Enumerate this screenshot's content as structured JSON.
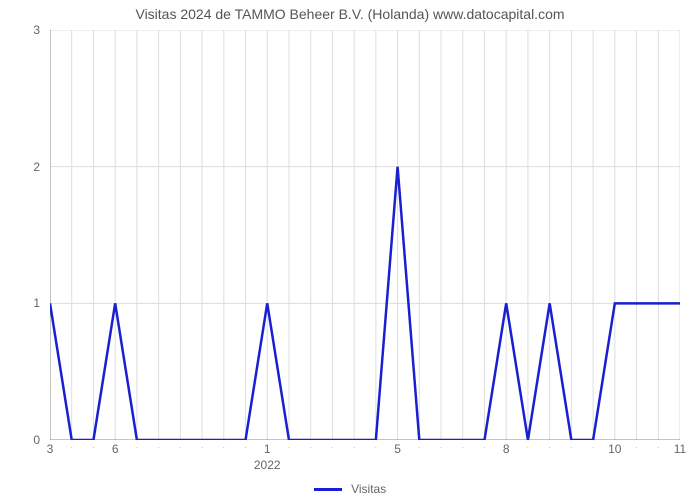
{
  "chart": {
    "type": "line",
    "title": "Visitas 2024 de TAMMO Beheer B.V. (Holanda) www.datocapital.com",
    "title_fontsize": 14,
    "title_color": "#555555",
    "background_color": "#ffffff",
    "grid_color": "#dddddd",
    "axis_color": "#888888",
    "line_color": "#1a1fd1",
    "line_width": 2.5,
    "label_color": "#666666",
    "label_fontsize": 12,
    "y_axis": {
      "min": 0,
      "max": 3,
      "ticks": [
        0,
        1,
        2,
        3
      ]
    },
    "x_axis": {
      "n_points": 30,
      "major_tick_labels": [
        {
          "pos": 0,
          "text": "3"
        },
        {
          "pos": 3,
          "text": "6"
        },
        {
          "pos": 10,
          "text": "1"
        },
        {
          "pos": 16,
          "text": "5"
        },
        {
          "pos": 21,
          "text": "8"
        },
        {
          "pos": 26,
          "text": "10"
        },
        {
          "pos": 29,
          "text": "11"
        }
      ],
      "sub_label": {
        "pos": 10,
        "text": "2022"
      }
    },
    "series": {
      "name": "Visitas",
      "values": [
        1,
        0,
        0,
        1,
        0,
        0,
        0,
        0,
        0,
        0,
        1,
        0,
        0,
        0,
        0,
        0,
        2,
        0,
        0,
        0,
        0,
        1,
        0,
        1,
        0,
        0,
        1,
        1,
        1,
        1
      ]
    },
    "legend": {
      "label": "Visitas",
      "color": "#1a1fd1"
    }
  }
}
